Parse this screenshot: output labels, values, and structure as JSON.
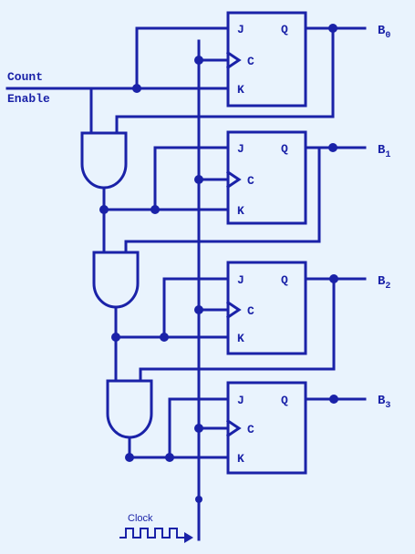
{
  "colors": {
    "line": "#1a22a8",
    "background": "#e9f3fd"
  },
  "labels": {
    "count": "Count",
    "enable": "Enable",
    "clock": "Clock"
  },
  "flipflop_pins": {
    "j": "J",
    "q": "Q",
    "c": "C",
    "k": "K"
  },
  "outputs": [
    {
      "base": "B",
      "sub": "0"
    },
    {
      "base": "B",
      "sub": "1"
    },
    {
      "base": "B",
      "sub": "2"
    },
    {
      "base": "B",
      "sub": "3"
    }
  ]
}
